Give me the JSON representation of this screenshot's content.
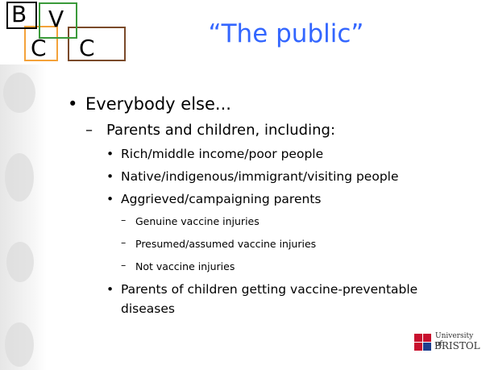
{
  "logo": {
    "letters": [
      "B",
      "C",
      "V",
      "C"
    ]
  },
  "title": "“The public”",
  "bullets": [
    {
      "text": "Everybody else...",
      "children": [
        {
          "text": "Parents and children, including:",
          "children": [
            {
              "text": "Rich/middle income/poor people"
            },
            {
              "text": "Native/indigenous/immigrant/visiting people"
            },
            {
              "text": "Aggrieved/campaigning parents",
              "children": [
                {
                  "text": "Genuine vaccine injuries"
                },
                {
                  "text": "Presumed/assumed vaccine injuries"
                },
                {
                  "text": "Not vaccine injuries"
                }
              ]
            },
            {
              "text": "Parents of children getting vaccine-preventable diseases"
            }
          ]
        }
      ]
    }
  ],
  "footer": {
    "university_of": "University of",
    "name": "BRISTOL"
  }
}
